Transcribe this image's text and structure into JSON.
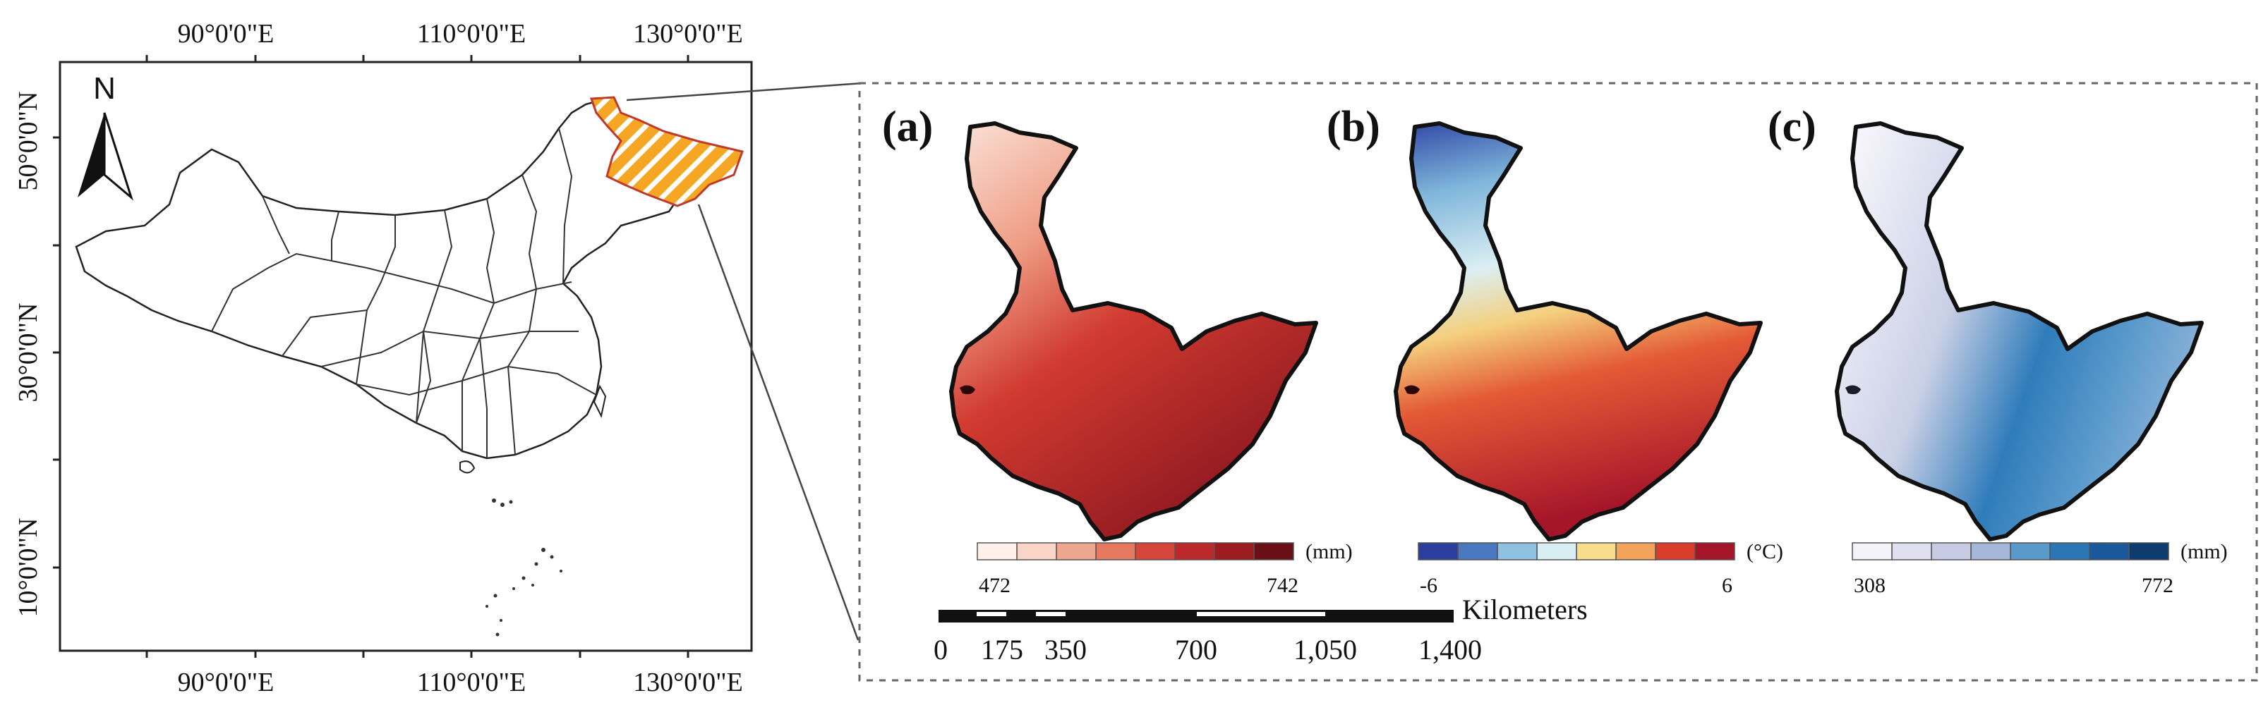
{
  "overview_map": {
    "top_lon_labels": [
      "90°0'0\"E",
      "110°0'0\"E",
      "130°0'0\"E"
    ],
    "bottom_lon_labels": [
      "90°0'0\"E",
      "110°0'0\"E",
      "130°0'0\"E"
    ],
    "lat_labels": [
      "50°0'0\"N",
      "30°0'0\"N",
      "10°0'0\"N"
    ],
    "north_label": "N",
    "highlight_colors": {
      "fill": "#f5a623",
      "stripe": "#ffffff",
      "outline": "#c0392b"
    }
  },
  "panels": [
    {
      "label": "(a)",
      "unit": "(mm)",
      "min_label": "472",
      "max_label": "742",
      "colors": [
        "#fdf1ea",
        "#f8d5c6",
        "#efa68e",
        "#e6785f",
        "#d6453a",
        "#bb2a2a",
        "#9b1b21",
        "#6b0f16"
      ]
    },
    {
      "label": "(b)",
      "unit": "(°C)",
      "min_label": "-6",
      "max_label": "6",
      "colors": [
        "#2c3f9e",
        "#4a78c0",
        "#8ec2e0",
        "#d8eef2",
        "#f6dc8b",
        "#f3a45a",
        "#da3d2b",
        "#a5152a"
      ]
    },
    {
      "label": "(c)",
      "unit": "(mm)",
      "min_label": "308",
      "max_label": "772",
      "colors": [
        "#f5f3fa",
        "#e0e0ef",
        "#c6cbe3",
        "#a5b8d9",
        "#5a9acb",
        "#2b76b5",
        "#19589a",
        "#0d3b6e"
      ]
    }
  ],
  "scale_bar": {
    "unit": "Kilometers",
    "labels": [
      "0",
      "175",
      "350",
      "700",
      "1,050",
      "1,400"
    ]
  }
}
